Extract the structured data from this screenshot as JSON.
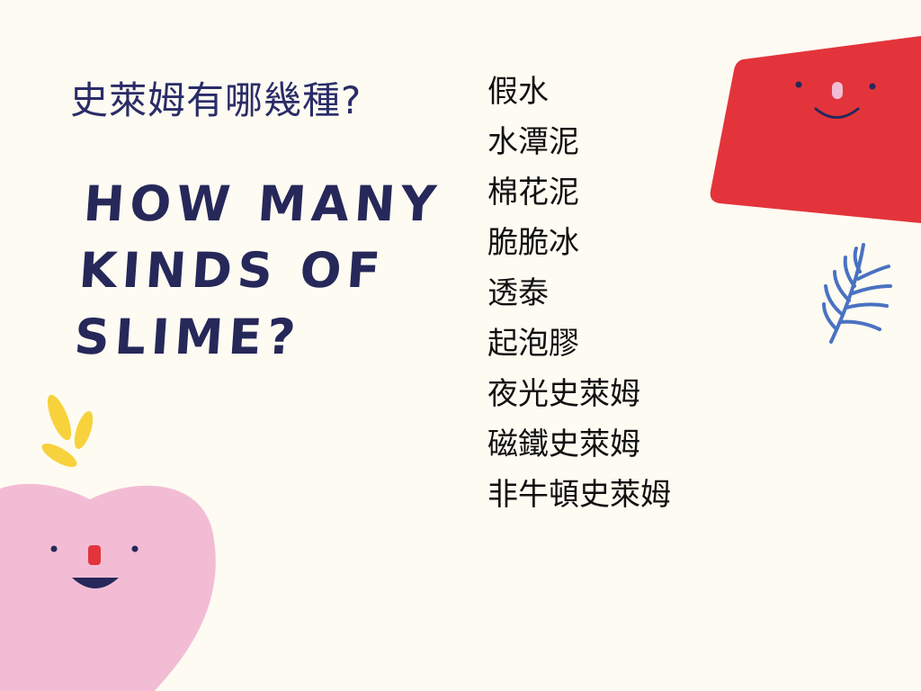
{
  "slide": {
    "title_zh": "史萊姆有哪幾種?",
    "title_en_lines": [
      "HOW MANY",
      "KINDS OF",
      "SLIME?"
    ],
    "kinds": [
      "假水",
      "水潭泥",
      "棉花泥",
      "脆脆冰",
      "透泰",
      "起泡膠",
      "夜光史萊姆",
      "磁鐵史萊姆",
      "非牛頓史萊姆"
    ]
  },
  "colors": {
    "background": "#fefbf2",
    "title_text": "#2a2c68",
    "red_shape": "#e3343b",
    "pink_heart": "#f2bdd4",
    "leaf_blue": "#4a72c2",
    "sprout_yellow": "#f7d23c",
    "face_dark": "#26285a"
  },
  "decorations": {
    "red_block_icon": "smiling-card-icon",
    "heart_icon": "smiling-heart-icon",
    "leaf_icon": "fern-leaf-icon",
    "sprout_icon": "sprout-petals-icon"
  }
}
